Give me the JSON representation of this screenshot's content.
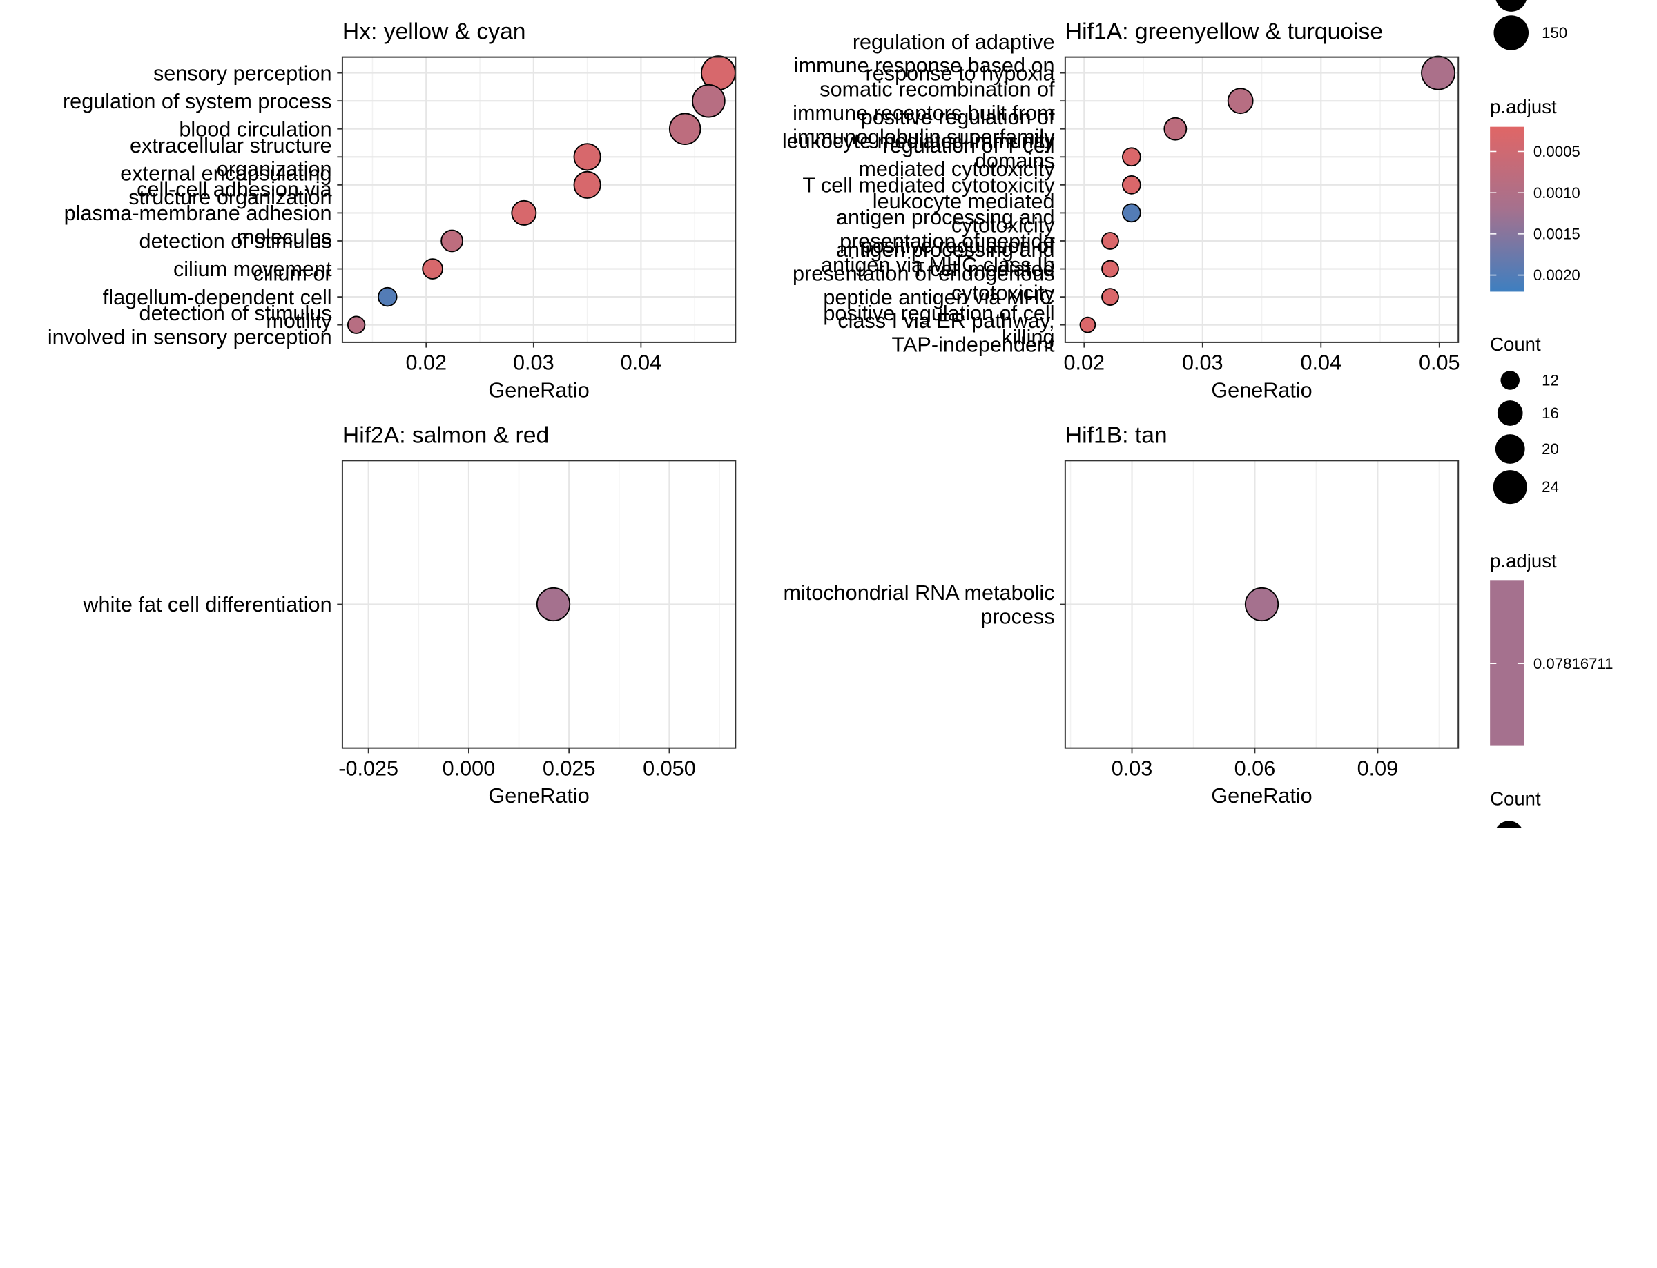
{
  "chart_data": [
    {
      "type": "scatter",
      "title": "Hx: yellow & cyan",
      "xlabel": "GeneRatio",
      "xlim": [
        0.0122,
        0.0488
      ],
      "xticks": [
        "0.02",
        "0.03",
        "0.04"
      ],
      "xtick_values": [
        0.02,
        0.03,
        0.04
      ],
      "pal": [
        0.0002,
        0.0022
      ],
      "sizecount": [
        8,
        160
      ],
      "points": [
        {
          "term": [
            "sensory perception"
          ],
          "x": 0.0472,
          "count": 145,
          "p": 0.00035
        },
        {
          "term": [
            "regulation of system process"
          ],
          "x": 0.0463,
          "count": 135,
          "p": 0.0009
        },
        {
          "term": [
            "blood circulation"
          ],
          "x": 0.0441,
          "count": 125,
          "p": 0.0008
        },
        {
          "term": [
            "extracellular structure",
            "organization"
          ],
          "x": 0.035,
          "count": 95,
          "p": 0.00035
        },
        {
          "term": [
            "external encapsulating",
            "structure organization"
          ],
          "x": 0.035,
          "count": 95,
          "p": 0.00035
        },
        {
          "term": [
            "cell-cell adhesion via",
            "plasma-membrane adhesion",
            "molecules"
          ],
          "x": 0.0291,
          "count": 80,
          "p": 0.00035
        },
        {
          "term": [
            "detection of stimulus"
          ],
          "x": 0.0224,
          "count": 60,
          "p": 0.0008
        },
        {
          "term": [
            "cilium movement"
          ],
          "x": 0.0206,
          "count": 50,
          "p": 0.00035
        },
        {
          "term": [
            "cilium or",
            "flagellum-dependent cell",
            "motility"
          ],
          "x": 0.0164,
          "count": 40,
          "p": 0.002
        },
        {
          "term": [
            "detection of stimulus",
            "involved in sensory perception"
          ],
          "x": 0.0135,
          "count": 30,
          "p": 0.0009
        }
      ]
    },
    {
      "type": "scatter",
      "title": "Hif1A: greenyellow & turquoise",
      "xlabel": "GeneRatio",
      "xlim": [
        0.0184,
        0.0516
      ],
      "xticks": [
        "0.02",
        "0.03",
        "0.04",
        "0.05"
      ],
      "xtick_values": [
        0.02,
        0.03,
        0.04,
        0.05
      ],
      "pal": [
        0.0002,
        0.0022
      ],
      "sizecount": [
        10,
        26
      ],
      "points": [
        {
          "term": [
            "response to hypoxia"
          ],
          "x": 0.0499,
          "count": 24,
          "p": 0.0011
        },
        {
          "term": [
            "regulation of adaptive",
            "immune response based on",
            "somatic recombination of",
            "immune receptors built from",
            "immunoglobulin superfamily",
            "domains"
          ],
          "x": 0.0332,
          "count": 18,
          "p": 0.0009
        },
        {
          "term": [
            "positive regulation of",
            "leukocyte mediated immunity"
          ],
          "x": 0.0277,
          "count": 16,
          "p": 0.0008
        },
        {
          "term": [
            "regulation of T cell",
            "mediated cytotoxicity"
          ],
          "x": 0.024,
          "count": 13,
          "p": 0.0003
        },
        {
          "term": [
            "T cell mediated cytotoxicity"
          ],
          "x": 0.024,
          "count": 13,
          "p": 0.0003
        },
        {
          "term": [
            "leukocyte mediated",
            "cytotoxicity"
          ],
          "x": 0.024,
          "count": 13,
          "p": 0.002
        },
        {
          "term": [
            "antigen processing and",
            "presentation of peptide",
            "antigen via MHC class Ib"
          ],
          "x": 0.0222,
          "count": 12,
          "p": 0.0003
        },
        {
          "term": [
            "positive regulation of",
            "T cell mediated",
            "cytotoxicity"
          ],
          "x": 0.0222,
          "count": 12,
          "p": 0.0003
        },
        {
          "term": [
            "antigen processing and",
            "presentation of endogenous",
            "peptide antigen via MHC",
            "class I via ER pathway,",
            "TAP-independent"
          ],
          "x": 0.0222,
          "count": 12,
          "p": 0.0003
        },
        {
          "term": [
            "positive regulation of cell",
            "killing"
          ],
          "x": 0.0203,
          "count": 11,
          "p": 0.0003
        }
      ]
    },
    {
      "type": "scatter",
      "title": "Hif2A: salmon & red",
      "xlabel": "GeneRatio",
      "xlim": [
        -0.0315,
        0.0665
      ],
      "xticks": [
        "-0.025",
        "0.000",
        "0.025",
        "0.050"
      ],
      "xtick_values": [
        -0.025,
        0.0,
        0.025,
        0.05
      ],
      "points": [
        {
          "term": [
            "white fat cell differentiation"
          ],
          "x": 0.0211,
          "count": 20,
          "p": 0.07816711
        }
      ]
    },
    {
      "type": "scatter",
      "title": "Hif1B: tan",
      "xlabel": "GeneRatio",
      "xlim": [
        0.0137,
        0.1097
      ],
      "xticks": [
        "0.03",
        "0.06",
        "0.09"
      ],
      "xtick_values": [
        0.03,
        0.06,
        0.09
      ],
      "points": [
        {
          "term": [
            "mitochondrial RNA metabolic",
            "process"
          ],
          "x": 0.0617,
          "count": 20,
          "p": 0.07816711
        }
      ]
    }
  ],
  "legend": {
    "count1": {
      "title": "",
      "entries": [
        "150"
      ]
    },
    "padjust1": {
      "title": "p.adjust",
      "labels": [
        "0.0005",
        "0.0010",
        "0.0015",
        "0.0020"
      ],
      "label_values": [
        0.0005,
        0.001,
        0.0015,
        0.002
      ],
      "lim": [
        0.0002,
        0.0022
      ]
    },
    "count2": {
      "title": "Count",
      "entries": [
        "12",
        "16",
        "20",
        "24"
      ],
      "values": [
        12,
        16,
        20,
        24
      ]
    },
    "padjust2": {
      "title": "p.adjust",
      "labels": [
        "0.07816711"
      ]
    },
    "count3": {
      "title": "Count"
    }
  },
  "colors": {
    "high": "#E06666",
    "mid": "#A5718E",
    "low": "#3E7FC0"
  }
}
